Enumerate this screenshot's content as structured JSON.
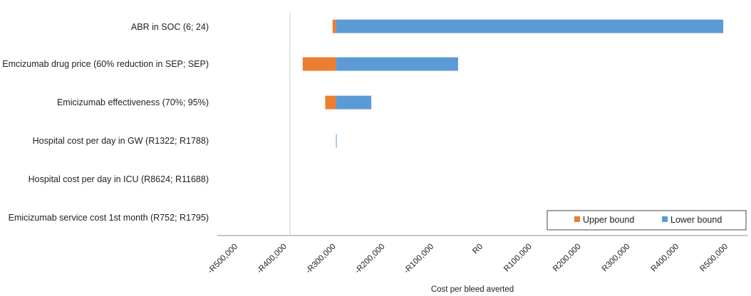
{
  "chart_data": {
    "type": "bar",
    "orientation": "horizontal",
    "chart_style": "tornado",
    "baseline": -300000,
    "categories": [
      "ABR in SOC (6; 24)",
      "Emcizumab drug price (60% reduction in SEP; SEP)",
      "Emicizumab effectiveness (70%; 95%)",
      "Hospital cost per day in GW (R1322; R1788)",
      "Hospital cost per day in ICU (R8624; R11688)",
      "Emicizumab service cost 1st month (R752; R1795)"
    ],
    "series": [
      {
        "name": "Upper bound",
        "color": "#ED7D31",
        "values": [
          -307000,
          -368000,
          -322000,
          -300000,
          -300000,
          -300000
        ]
      },
      {
        "name": "Lower bound",
        "color": "#5B9BD5",
        "values": [
          490000,
          -51000,
          -228000,
          -299000,
          -300000,
          -300000
        ]
      }
    ],
    "xlim": [
      -500000,
      500000
    ],
    "x_ticks": [
      "-R500,000",
      "-R400,000",
      "-R300,000",
      "-R200,000",
      "-R100,000",
      "R0",
      "R100,000",
      "R200,000",
      "R300,000",
      "R400,000",
      "R500,000"
    ],
    "xlabel": "Cost per bleed averted",
    "ylabel": "",
    "grid": false,
    "legend_position": "bottom-right"
  }
}
